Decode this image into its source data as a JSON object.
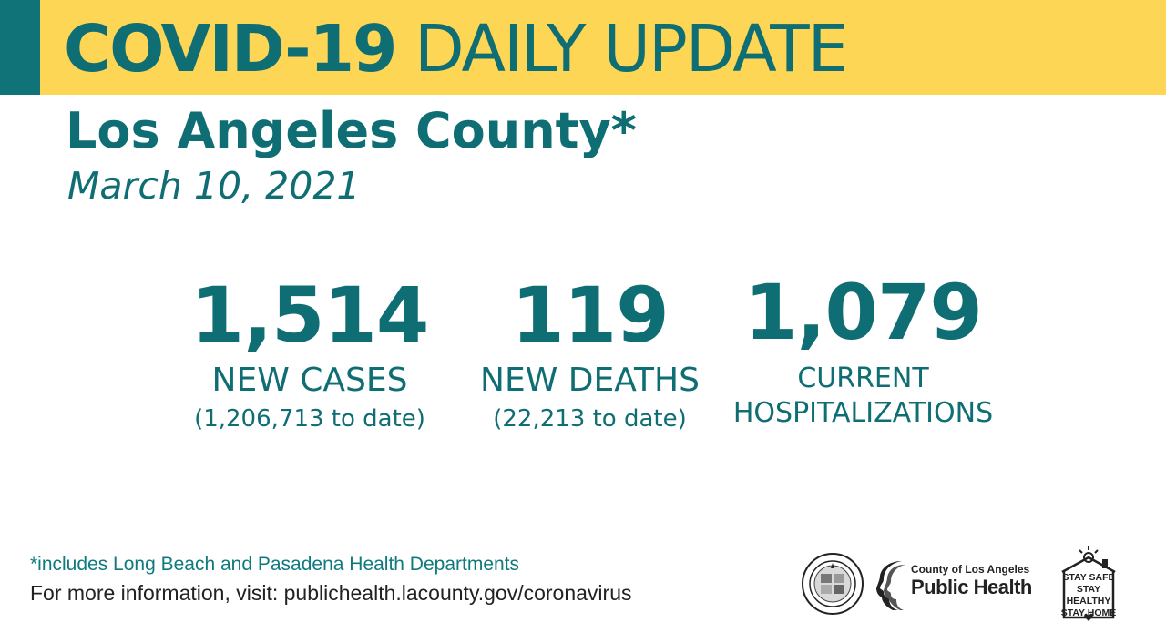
{
  "banner": {
    "title_bold": "COVID-19",
    "title_light": "DAILY UPDATE",
    "accent_color": "#0f7378",
    "background_color": "#fdd655",
    "text_color": "#0f6e73"
  },
  "header": {
    "county": "Los Angeles County*",
    "date": "March 10, 2021"
  },
  "stats": {
    "cases": {
      "value": "1,514",
      "label": "NEW CASES",
      "sub": "(1,206,713 to date)"
    },
    "deaths": {
      "value": "119",
      "label": "NEW DEATHS",
      "sub": "(22,213 to date)"
    },
    "hospitalizations": {
      "value": "1,079",
      "label_line1": "CURRENT",
      "label_line2": "HOSPITALIZATIONS"
    }
  },
  "footer": {
    "note": "*includes Long Beach and Pasadena Health Departments",
    "info": "For more information, visit: publichealth.lacounty.gov/coronavirus"
  },
  "logos": {
    "public_health_line1": "County of Los Angeles",
    "public_health_line2": "Public Health",
    "stay_line1": "STAY SAFE",
    "stay_line2": "STAY HEALTHY",
    "stay_line3": "STAY HOME"
  }
}
